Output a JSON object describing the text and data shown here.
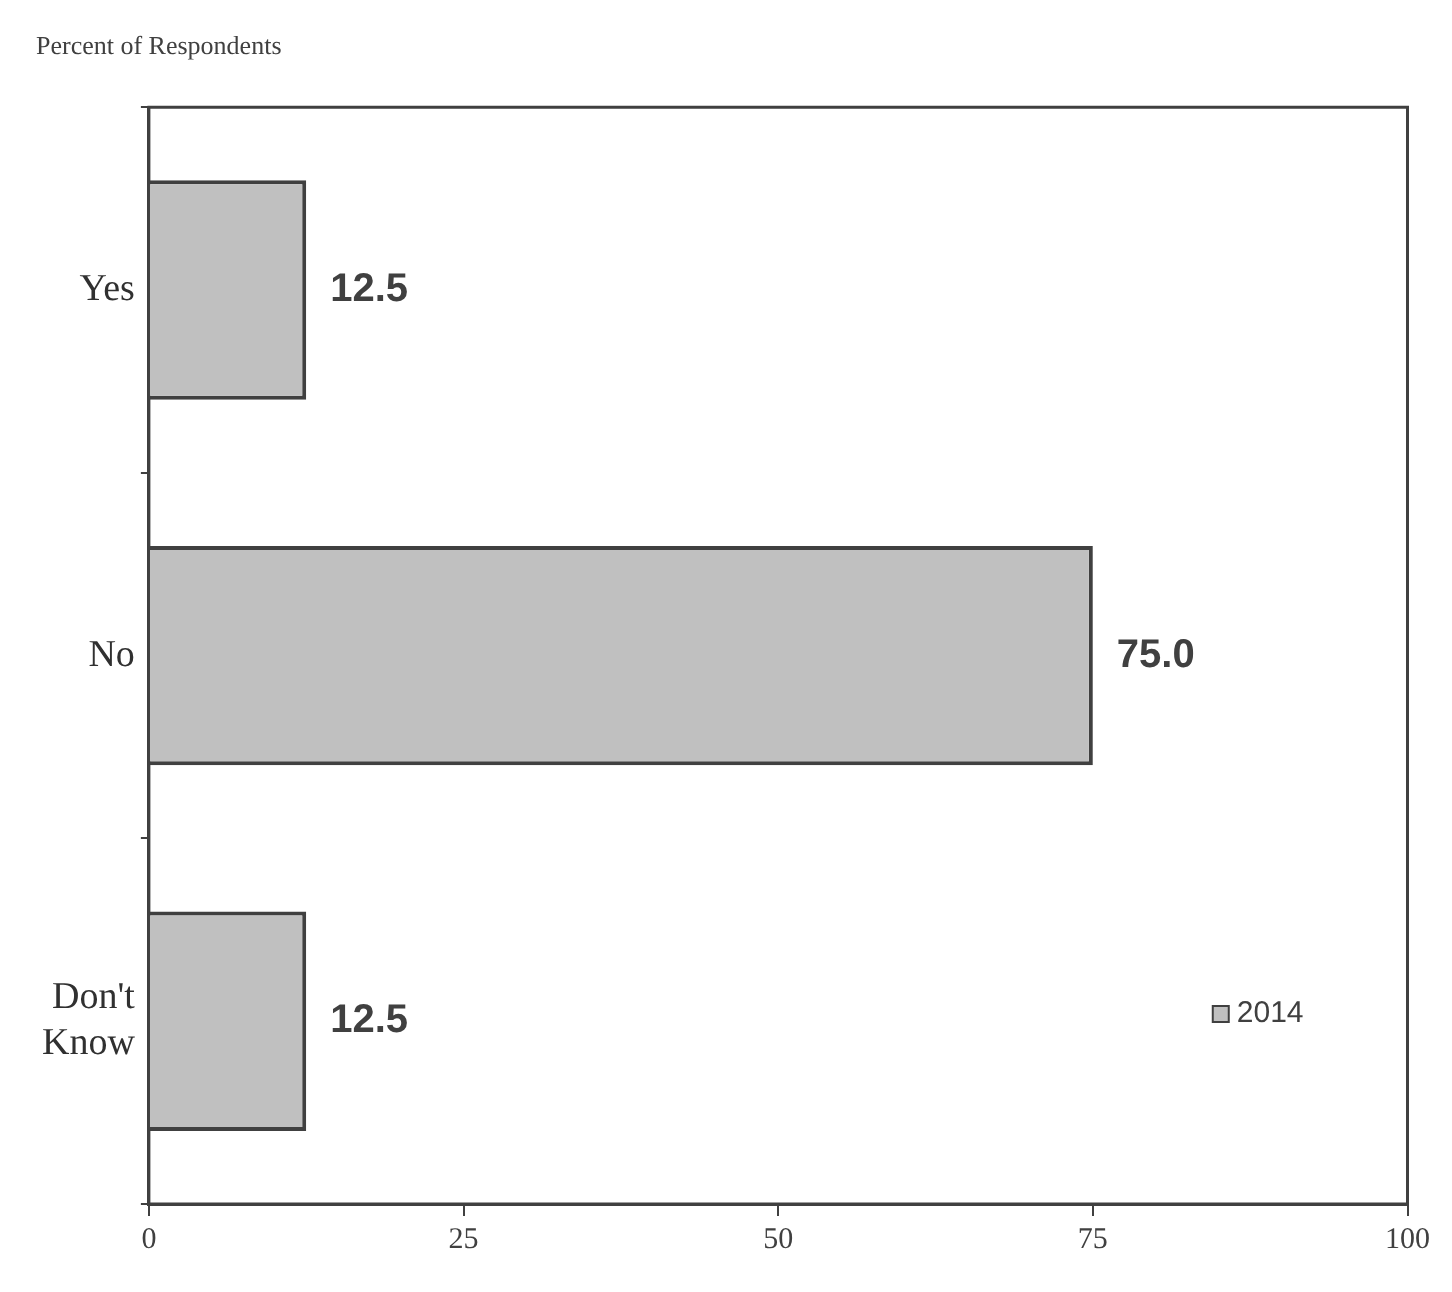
{
  "chart_data": {
    "type": "bar",
    "orientation": "horizontal",
    "title": "Percent of Respondents",
    "categories": [
      "Yes",
      "No",
      "Don't Know"
    ],
    "series": [
      {
        "name": "2014",
        "color": "#c0c0c0",
        "values": [
          12.5,
          75.0,
          12.5
        ],
        "value_labels": [
          "12.5",
          "75.0",
          "12.5"
        ]
      }
    ],
    "xlim": [
      0,
      100
    ],
    "xticks": [
      0,
      25,
      50,
      75,
      100
    ],
    "grid": false,
    "legend": "bottom right"
  }
}
